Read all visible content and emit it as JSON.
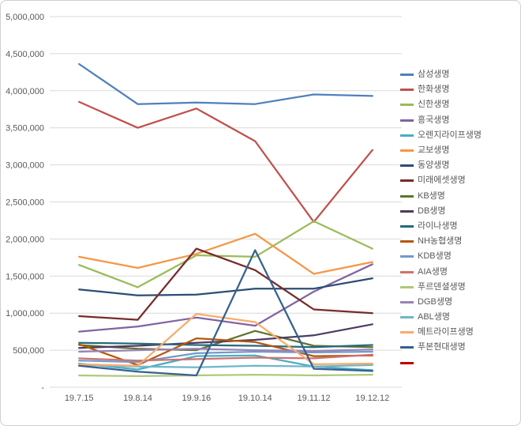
{
  "chart": {
    "background": "#ffffff",
    "frame_border_color": "#cfcfcf",
    "grid_color": "#d9d9d9",
    "axis_text_color": "#595959",
    "legend_text_color": "#595959"
  },
  "chart_data": {
    "type": "line",
    "title": "",
    "xlabel": "",
    "ylabel": "",
    "grid": true,
    "legend_position": "right",
    "ylim": [
      0,
      5000000
    ],
    "y_tick_step": 500000,
    "y_ticks": [
      "5,000,000",
      "4,500,000",
      "4,000,000",
      "3,500,000",
      "3,000,000",
      "2,500,000",
      "2,000,000",
      "1,500,000",
      "1,000,000",
      "500,000",
      "-"
    ],
    "categories": [
      "19.7.15",
      "19.8.14",
      "19.9.16",
      "19.10.14",
      "19.11.12",
      "19.12.12"
    ],
    "series": [
      {
        "name": "삼성생명",
        "color": "#4F81BD",
        "values": [
          4360000,
          3820000,
          3840000,
          3820000,
          3950000,
          3930000
        ]
      },
      {
        "name": "한화생명",
        "color": "#C0504D",
        "values": [
          3850000,
          3500000,
          3760000,
          3320000,
          2230000,
          3200000
        ]
      },
      {
        "name": "신한생명",
        "color": "#9BBB59",
        "values": [
          1650000,
          1350000,
          1780000,
          1760000,
          2240000,
          1870000
        ]
      },
      {
        "name": "흥국생명",
        "color": "#8064A2",
        "values": [
          750000,
          820000,
          940000,
          830000,
          1290000,
          1660000
        ]
      },
      {
        "name": "오렌지라이프생명",
        "color": "#4BACC6",
        "values": [
          320000,
          240000,
          420000,
          430000,
          280000,
          230000
        ]
      },
      {
        "name": "교보생명",
        "color": "#F79646",
        "values": [
          1760000,
          1610000,
          1800000,
          2070000,
          1530000,
          1690000
        ]
      },
      {
        "name": "동양생명",
        "color": "#2C4D75",
        "values": [
          1320000,
          1240000,
          1250000,
          1330000,
          1330000,
          1470000
        ]
      },
      {
        "name": "미래에셋생명",
        "color": "#772C2A",
        "values": [
          960000,
          910000,
          1870000,
          1580000,
          1050000,
          1000000
        ]
      },
      {
        "name": "KB생명",
        "color": "#5F7530",
        "values": [
          570000,
          520000,
          500000,
          760000,
          560000,
          540000
        ]
      },
      {
        "name": "DB생명",
        "color": "#4D3B62",
        "values": [
          530000,
          560000,
          600000,
          640000,
          700000,
          850000
        ]
      },
      {
        "name": "라이나생명",
        "color": "#276A7C",
        "values": [
          600000,
          590000,
          570000,
          560000,
          540000,
          570000
        ]
      },
      {
        "name": "NH농협생명",
        "color": "#B65708",
        "values": [
          580000,
          300000,
          660000,
          610000,
          420000,
          430000
        ]
      },
      {
        "name": "KDB생명",
        "color": "#729ACA",
        "values": [
          360000,
          340000,
          460000,
          480000,
          470000,
          480000
        ]
      },
      {
        "name": "AIA생명",
        "color": "#CD7371",
        "values": [
          390000,
          360000,
          380000,
          400000,
          390000,
          440000
        ]
      },
      {
        "name": "푸르덴셜생명",
        "color": "#AFC97A",
        "values": [
          160000,
          150000,
          160000,
          170000,
          160000,
          170000
        ]
      },
      {
        "name": "DGB생명",
        "color": "#9983B5",
        "values": [
          480000,
          500000,
          520000,
          500000,
          490000,
          510000
        ]
      },
      {
        "name": "ABL생명",
        "color": "#6FB7C9",
        "values": [
          300000,
          280000,
          270000,
          290000,
          280000,
          300000
        ]
      },
      {
        "name": "메트라이프생명",
        "color": "#F9AB6B",
        "values": [
          310000,
          290000,
          990000,
          880000,
          310000,
          320000
        ]
      },
      {
        "name": "푸본현대생명",
        "color": "#35618F",
        "values": [
          290000,
          210000,
          160000,
          1850000,
          250000,
          220000
        ]
      },
      {
        "name": "",
        "color": "#C00000",
        "values": []
      }
    ]
  }
}
